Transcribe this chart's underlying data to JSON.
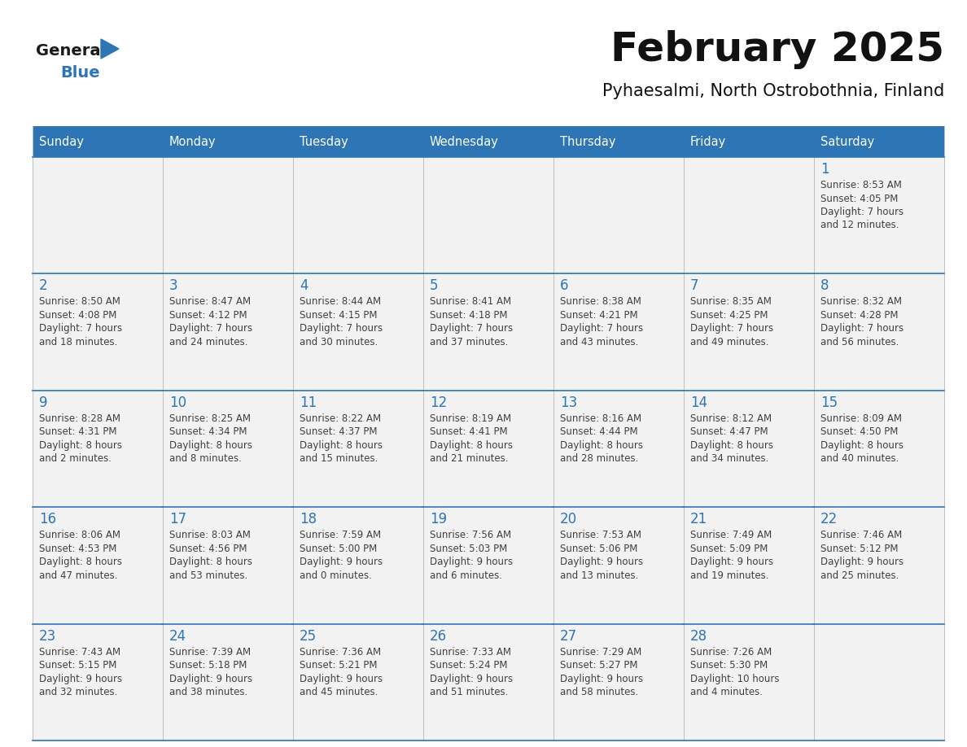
{
  "title": "February 2025",
  "subtitle": "Pyhaesalmi, North Ostrobothnia, Finland",
  "days_of_week": [
    "Sunday",
    "Monday",
    "Tuesday",
    "Wednesday",
    "Thursday",
    "Friday",
    "Saturday"
  ],
  "header_bg": "#2E75B6",
  "header_text": "#FFFFFF",
  "cell_bg_light": "#F2F2F2",
  "border_color": "#2E75B6",
  "day_num_color": "#2E75B6",
  "text_color": "#404040",
  "logo_general_color": "#1a1a1a",
  "logo_blue_color": "#2E75B6",
  "weeks": [
    [
      null,
      null,
      null,
      null,
      null,
      null,
      1
    ],
    [
      2,
      3,
      4,
      5,
      6,
      7,
      8
    ],
    [
      9,
      10,
      11,
      12,
      13,
      14,
      15
    ],
    [
      16,
      17,
      18,
      19,
      20,
      21,
      22
    ],
    [
      23,
      24,
      25,
      26,
      27,
      28,
      null
    ]
  ],
  "cell_data": {
    "1": {
      "sunrise": "8:53 AM",
      "sunset": "4:05 PM",
      "daylight_h": "7 hours",
      "daylight_m": "and 12 minutes."
    },
    "2": {
      "sunrise": "8:50 AM",
      "sunset": "4:08 PM",
      "daylight_h": "7 hours",
      "daylight_m": "and 18 minutes."
    },
    "3": {
      "sunrise": "8:47 AM",
      "sunset": "4:12 PM",
      "daylight_h": "7 hours",
      "daylight_m": "and 24 minutes."
    },
    "4": {
      "sunrise": "8:44 AM",
      "sunset": "4:15 PM",
      "daylight_h": "7 hours",
      "daylight_m": "and 30 minutes."
    },
    "5": {
      "sunrise": "8:41 AM",
      "sunset": "4:18 PM",
      "daylight_h": "7 hours",
      "daylight_m": "and 37 minutes."
    },
    "6": {
      "sunrise": "8:38 AM",
      "sunset": "4:21 PM",
      "daylight_h": "7 hours",
      "daylight_m": "and 43 minutes."
    },
    "7": {
      "sunrise": "8:35 AM",
      "sunset": "4:25 PM",
      "daylight_h": "7 hours",
      "daylight_m": "and 49 minutes."
    },
    "8": {
      "sunrise": "8:32 AM",
      "sunset": "4:28 PM",
      "daylight_h": "7 hours",
      "daylight_m": "and 56 minutes."
    },
    "9": {
      "sunrise": "8:28 AM",
      "sunset": "4:31 PM",
      "daylight_h": "8 hours",
      "daylight_m": "and 2 minutes."
    },
    "10": {
      "sunrise": "8:25 AM",
      "sunset": "4:34 PM",
      "daylight_h": "8 hours",
      "daylight_m": "and 8 minutes."
    },
    "11": {
      "sunrise": "8:22 AM",
      "sunset": "4:37 PM",
      "daylight_h": "8 hours",
      "daylight_m": "and 15 minutes."
    },
    "12": {
      "sunrise": "8:19 AM",
      "sunset": "4:41 PM",
      "daylight_h": "8 hours",
      "daylight_m": "and 21 minutes."
    },
    "13": {
      "sunrise": "8:16 AM",
      "sunset": "4:44 PM",
      "daylight_h": "8 hours",
      "daylight_m": "and 28 minutes."
    },
    "14": {
      "sunrise": "8:12 AM",
      "sunset": "4:47 PM",
      "daylight_h": "8 hours",
      "daylight_m": "and 34 minutes."
    },
    "15": {
      "sunrise": "8:09 AM",
      "sunset": "4:50 PM",
      "daylight_h": "8 hours",
      "daylight_m": "and 40 minutes."
    },
    "16": {
      "sunrise": "8:06 AM",
      "sunset": "4:53 PM",
      "daylight_h": "8 hours",
      "daylight_m": "and 47 minutes."
    },
    "17": {
      "sunrise": "8:03 AM",
      "sunset": "4:56 PM",
      "daylight_h": "8 hours",
      "daylight_m": "and 53 minutes."
    },
    "18": {
      "sunrise": "7:59 AM",
      "sunset": "5:00 PM",
      "daylight_h": "9 hours",
      "daylight_m": "and 0 minutes."
    },
    "19": {
      "sunrise": "7:56 AM",
      "sunset": "5:03 PM",
      "daylight_h": "9 hours",
      "daylight_m": "and 6 minutes."
    },
    "20": {
      "sunrise": "7:53 AM",
      "sunset": "5:06 PM",
      "daylight_h": "9 hours",
      "daylight_m": "and 13 minutes."
    },
    "21": {
      "sunrise": "7:49 AM",
      "sunset": "5:09 PM",
      "daylight_h": "9 hours",
      "daylight_m": "and 19 minutes."
    },
    "22": {
      "sunrise": "7:46 AM",
      "sunset": "5:12 PM",
      "daylight_h": "9 hours",
      "daylight_m": "and 25 minutes."
    },
    "23": {
      "sunrise": "7:43 AM",
      "sunset": "5:15 PM",
      "daylight_h": "9 hours",
      "daylight_m": "and 32 minutes."
    },
    "24": {
      "sunrise": "7:39 AM",
      "sunset": "5:18 PM",
      "daylight_h": "9 hours",
      "daylight_m": "and 38 minutes."
    },
    "25": {
      "sunrise": "7:36 AM",
      "sunset": "5:21 PM",
      "daylight_h": "9 hours",
      "daylight_m": "and 45 minutes."
    },
    "26": {
      "sunrise": "7:33 AM",
      "sunset": "5:24 PM",
      "daylight_h": "9 hours",
      "daylight_m": "and 51 minutes."
    },
    "27": {
      "sunrise": "7:29 AM",
      "sunset": "5:27 PM",
      "daylight_h": "9 hours",
      "daylight_m": "and 58 minutes."
    },
    "28": {
      "sunrise": "7:26 AM",
      "sunset": "5:30 PM",
      "daylight_h": "10 hours",
      "daylight_m": "and 4 minutes."
    }
  }
}
